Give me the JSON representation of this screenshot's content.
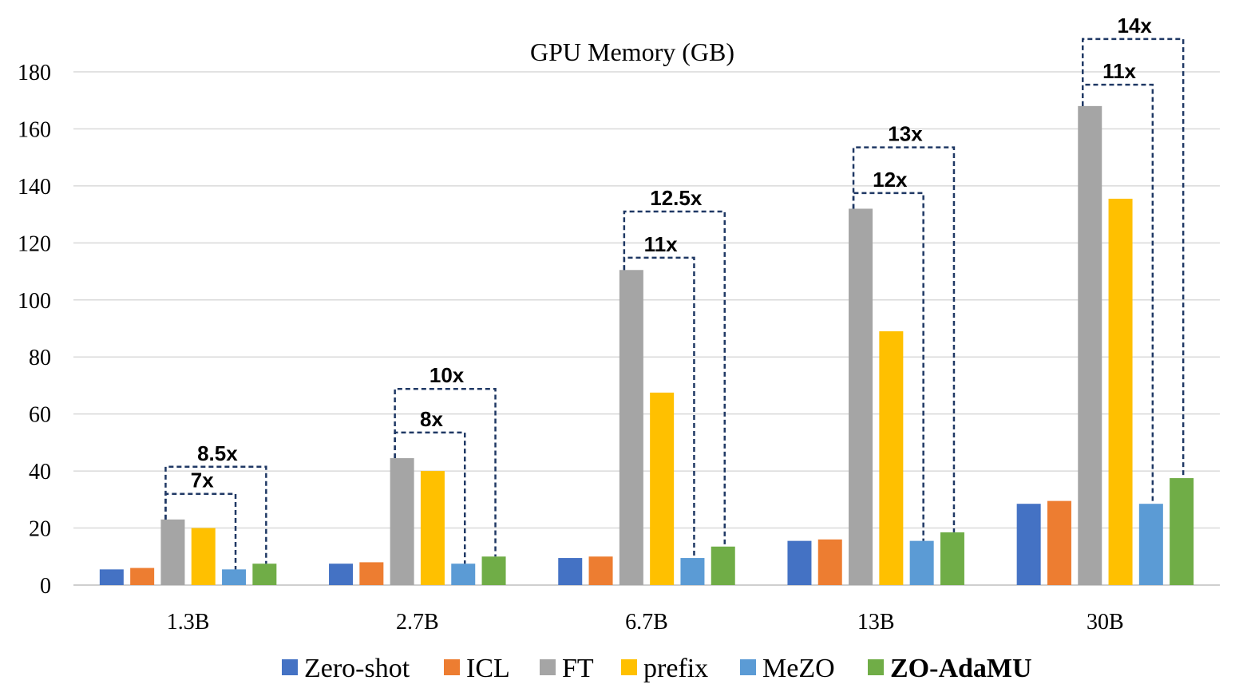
{
  "chart_data": {
    "type": "bar",
    "title": "GPU Memory (GB)",
    "xlabel": "",
    "ylabel": "",
    "ylim": [
      0,
      180
    ],
    "yticks": [
      0,
      20,
      40,
      60,
      80,
      100,
      120,
      140,
      160,
      180
    ],
    "grid": true,
    "legend_position": "bottom",
    "categories": [
      "1.3B",
      "2.7B",
      "6.7B",
      "13B",
      "30B"
    ],
    "series": [
      {
        "name": "Zero-shot",
        "color": "#4472c4",
        "values": [
          5.5,
          7.5,
          9.5,
          15.5,
          28.5
        ]
      },
      {
        "name": "ICL",
        "color": "#ed7d31",
        "values": [
          6,
          8,
          10,
          16,
          29.5
        ]
      },
      {
        "name": "FT",
        "color": "#a5a5a5",
        "values": [
          23,
          44.5,
          110.5,
          132,
          168
        ]
      },
      {
        "name": "prefix",
        "color": "#ffc000",
        "values": [
          20,
          40,
          67.5,
          89,
          135.5
        ]
      },
      {
        "name": "MeZO",
        "color": "#5b9bd5",
        "values": [
          5.5,
          7.5,
          9.5,
          15.5,
          28.5
        ]
      },
      {
        "name": "ZO-AdaMU",
        "color": "#70ad47",
        "values": [
          7.5,
          10,
          13.5,
          18.5,
          37.5
        ]
      }
    ],
    "annotations": [
      {
        "category": "1.3B",
        "from": "FT",
        "to": "MeZO",
        "label": "7x",
        "level": 32
      },
      {
        "category": "1.3B",
        "from": "FT",
        "to": "ZO-AdaMU",
        "label": "8.5x",
        "level": 41.5
      },
      {
        "category": "2.7B",
        "from": "FT",
        "to": "MeZO",
        "label": "8x",
        "level": 53.5
      },
      {
        "category": "2.7B",
        "from": "FT",
        "to": "ZO-AdaMU",
        "label": "10x",
        "level": 68.8
      },
      {
        "category": "6.7B",
        "from": "FT",
        "to": "MeZO",
        "label": "11x",
        "level": 114.8
      },
      {
        "category": "6.7B",
        "from": "FT",
        "to": "ZO-AdaMU",
        "label": "12.5x",
        "level": 131
      },
      {
        "category": "13B",
        "from": "FT",
        "to": "MeZO",
        "label": "12x",
        "level": 137.5
      },
      {
        "category": "13B",
        "from": "FT",
        "to": "ZO-AdaMU",
        "label": "13x",
        "level": 153.5
      },
      {
        "category": "30B",
        "from": "FT",
        "to": "MeZO",
        "label": "11x",
        "level": 175.5
      },
      {
        "category": "30B",
        "from": "FT",
        "to": "ZO-AdaMU",
        "label": "14x",
        "level": 191.5
      }
    ]
  }
}
